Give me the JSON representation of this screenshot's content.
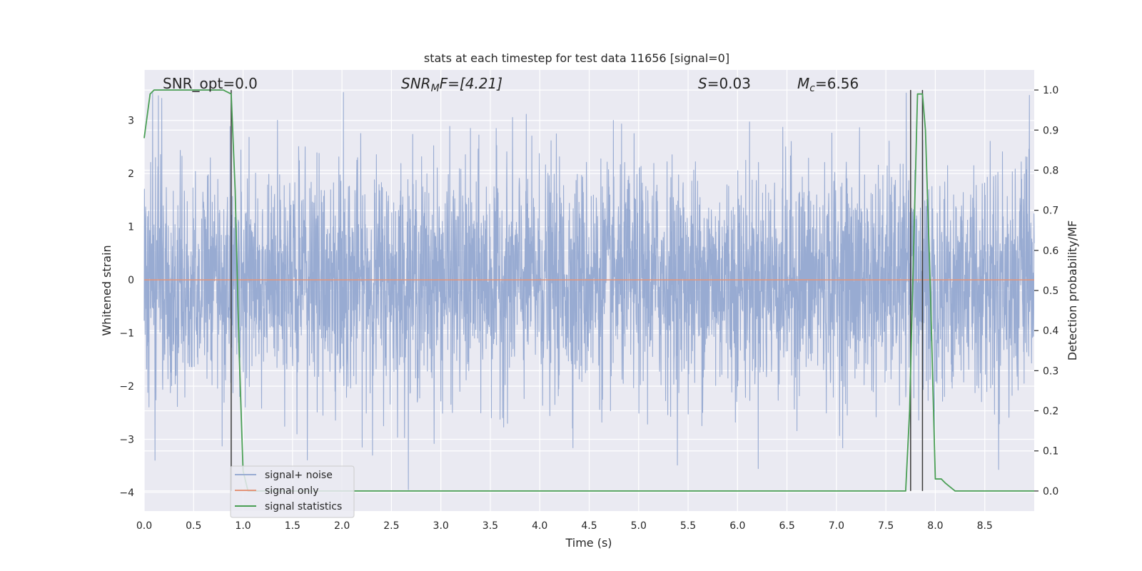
{
  "chart_data": {
    "type": "line",
    "title": "stats at each timestep for test data 11656 [signal=0]",
    "xlabel": "Time (s)",
    "ylabel": "Whitened strain",
    "y2label": "Detection probability/MF",
    "xlim": [
      0,
      9.0
    ],
    "ylim": [
      -4.35,
      3.95
    ],
    "y2lim": [
      -0.05,
      1.05
    ],
    "x_ticks": [
      0.0,
      0.5,
      1.0,
      1.5,
      2.0,
      2.5,
      3.0,
      3.5,
      4.0,
      4.5,
      5.0,
      5.5,
      6.0,
      6.5,
      7.0,
      7.5,
      8.0,
      8.5
    ],
    "x_tick_labels": [
      "0.0",
      "0.5",
      "1.0",
      "1.5",
      "2.0",
      "2.5",
      "3.0",
      "3.5",
      "4.0",
      "4.5",
      "5.0",
      "5.5",
      "6.0",
      "6.5",
      "7.0",
      "7.5",
      "8.0",
      "8.5"
    ],
    "y_ticks": [
      3,
      2,
      1,
      0,
      -1,
      -2,
      -3,
      -4
    ],
    "y_tick_labels": [
      "3",
      "2",
      "1",
      "0",
      "−1",
      "−2",
      "−3",
      "−4"
    ],
    "y2_ticks": [
      1.0,
      0.9,
      0.8,
      0.7,
      0.6,
      0.5,
      0.4,
      0.3,
      0.2,
      0.1,
      0.0
    ],
    "y2_tick_labels": [
      "1.0",
      "0.9",
      "0.8",
      "0.7",
      "0.6",
      "0.5",
      "0.4",
      "0.3",
      "0.2",
      "0.1",
      "0.0"
    ],
    "grid": true,
    "legend_placement": "lower-left",
    "annotations": {
      "snr_opt": "SNR_opt=0.0",
      "snr_mf_main": "SNR",
      "snr_mf_sub": "M",
      "snr_mf_rest": "F=[4.21]",
      "s_sym": "S",
      "s_val": "=0.03",
      "mc_sym": "M",
      "mc_sub": "c",
      "mc_val": "=6.56"
    },
    "series": [
      {
        "name": "signal+ noise",
        "color": "#98abd2",
        "axis": "left",
        "noise_std": 1.0,
        "n_samples": 3700
      },
      {
        "name": "signal only",
        "color": "#e3957a",
        "axis": "left",
        "x": [
          0,
          9.0
        ],
        "y": [
          0,
          0
        ]
      },
      {
        "name": "signal statistics",
        "color": "#4a9f55",
        "axis": "right",
        "x": [
          0.0,
          0.06,
          0.1,
          0.15,
          0.2,
          0.3,
          0.4,
          0.5,
          0.6,
          0.7,
          0.8,
          0.88,
          0.92,
          0.96,
          1.0,
          1.05,
          1.1,
          1.5,
          2.0,
          3.0,
          4.0,
          5.0,
          5.5,
          6.0,
          7.0,
          7.5,
          7.7,
          7.74,
          7.78,
          7.82,
          7.87,
          7.9,
          7.95,
          8.0,
          8.06,
          8.1,
          8.15,
          8.2,
          8.5,
          9.0
        ],
        "y": [
          0.88,
          0.99,
          1.0,
          1.0,
          1.0,
          1.0,
          1.0,
          1.0,
          1.0,
          1.0,
          1.0,
          0.99,
          0.75,
          0.35,
          0.05,
          0.0,
          0.0,
          0.0,
          0.0,
          0.0,
          0.0,
          0.0,
          0.0,
          0.0,
          0.0,
          0.0,
          0.0,
          0.2,
          0.6,
          0.99,
          0.99,
          0.9,
          0.5,
          0.03,
          0.03,
          0.02,
          0.01,
          0.0,
          0.0,
          0.0
        ]
      }
    ],
    "vlines": [
      {
        "x": 0.88,
        "ymin": 0.0,
        "ymax": 1.0
      },
      {
        "x": 7.75,
        "ymin": 0.0,
        "ymax": 1.0
      },
      {
        "x": 7.87,
        "ymin": 0.0,
        "ymax": 1.0
      }
    ]
  }
}
